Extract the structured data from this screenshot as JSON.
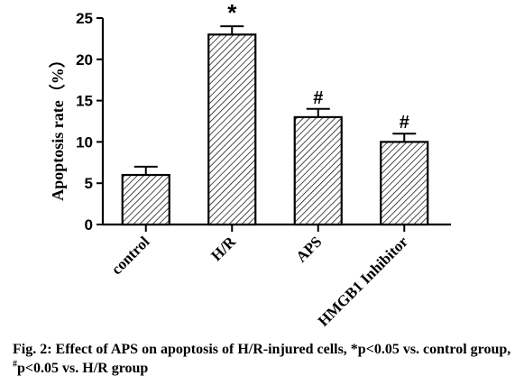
{
  "chart_data": {
    "type": "bar",
    "categories": [
      "control",
      "H/R",
      "APS",
      "HMGB1 Inhibitor"
    ],
    "values": [
      6,
      23,
      13,
      10
    ],
    "errors": [
      1,
      1,
      1,
      1
    ],
    "annotations": [
      "",
      "*",
      "#",
      "#"
    ],
    "ylabel": "Apoptosis rate（%）",
    "ylim": [
      0,
      25
    ],
    "yticks": [
      0,
      5,
      10,
      15,
      20,
      25
    ],
    "grid": false,
    "bar_fill": "hatched",
    "bar_color": "#000000"
  },
  "caption": {
    "part1": "Fig. 2: Effect of APS on apoptosis of H/R-injured cells, *p<0.05 vs. control group, ",
    "sup": "#",
    "part2": "p<0.05 vs. H/R group"
  }
}
